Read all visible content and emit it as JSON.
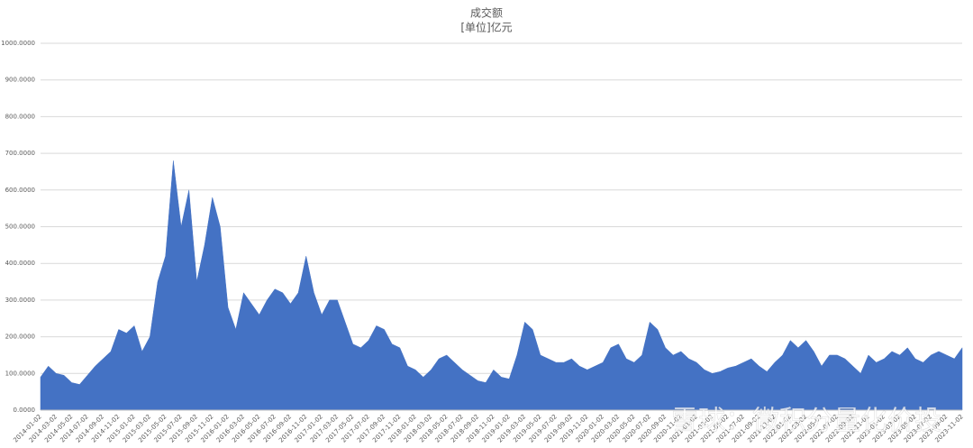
{
  "chart_data": {
    "type": "area",
    "title": "成交额",
    "subtitle": "[单位]亿元",
    "watermark": "雪球：微积分量化价投",
    "color": "#4472c4",
    "grid": true,
    "ylim": [
      0,
      1000
    ],
    "yticks": [
      {
        "value": 0,
        "label": "0.0000"
      },
      {
        "value": 100,
        "label": "100.0000"
      },
      {
        "value": 200,
        "label": "200.0000"
      },
      {
        "value": 300,
        "label": "300.0000"
      },
      {
        "value": 400,
        "label": "400.0000"
      },
      {
        "value": 500,
        "label": "500.0000"
      },
      {
        "value": 600,
        "label": "600.0000"
      },
      {
        "value": 700,
        "label": "700.0000"
      },
      {
        "value": 800,
        "label": "800.0000"
      },
      {
        "value": 900,
        "label": "900.0000"
      },
      {
        "value": 1000,
        "label": "1000.0000"
      }
    ],
    "categories": [
      "2014-01-02",
      null,
      "2014-03-02",
      null,
      "2014-05-02",
      null,
      "2014-07-02",
      null,
      "2014-09-02",
      null,
      "2014-11-02",
      null,
      "2015-01-02",
      null,
      "2015-03-02",
      null,
      "2015-05-02",
      null,
      "2015-07-02",
      null,
      "2015-09-02",
      null,
      "2015-11-02",
      null,
      "2016-01-02",
      null,
      "2016-03-02",
      null,
      "2016-05-02",
      null,
      "2016-07-02",
      null,
      "2016-09-02",
      null,
      "2016-11-02",
      null,
      "2017-01-02",
      null,
      "2017-03-02",
      null,
      "2017-05-02",
      null,
      "2017-07-02",
      null,
      "2017-09-02",
      null,
      "2017-11-02",
      null,
      "2018-01-02",
      null,
      "2018-03-02",
      null,
      "2018-05-02",
      null,
      "2018-07-02",
      null,
      "2018-09-02",
      null,
      "2018-11-02",
      null,
      "2019-01-02",
      null,
      "2019-03-02",
      null,
      "2019-05-02",
      null,
      "2019-07-02",
      null,
      "2019-09-02",
      null,
      "2019-11-02",
      null,
      "2020-01-02",
      null,
      "2020-03-02",
      null,
      "2020-05-02",
      null,
      "2020-07-02",
      null,
      "2020-09-02",
      null,
      "2020-11-02",
      null,
      "2021-01-02",
      null,
      "2021-03-02",
      null,
      "2021-05-02",
      null,
      "2021-07-02",
      null,
      "2021-09-02",
      null,
      "2021-11-02",
      null,
      "2022-01-02",
      null,
      "2022-03-02",
      null,
      "2022-05-02",
      null,
      "2022-07-02",
      null,
      "2022-09-02",
      null,
      "2022-11-02",
      null,
      "2023-01-02",
      null,
      "2023-03-02",
      null,
      "2023-05-02",
      null,
      "2023-07-02",
      null,
      "2023-09-02",
      null,
      "2023-11-02"
    ],
    "values": [
      90,
      120,
      100,
      95,
      75,
      70,
      95,
      120,
      140,
      160,
      220,
      210,
      230,
      160,
      200,
      350,
      420,
      680,
      500,
      600,
      350,
      450,
      580,
      500,
      280,
      220,
      320,
      290,
      260,
      300,
      330,
      320,
      290,
      320,
      420,
      320,
      260,
      300,
      300,
      240,
      180,
      170,
      190,
      230,
      220,
      180,
      170,
      120,
      110,
      90,
      110,
      140,
      150,
      130,
      110,
      95,
      80,
      75,
      110,
      90,
      85,
      150,
      240,
      220,
      150,
      140,
      130,
      130,
      140,
      120,
      110,
      120,
      130,
      170,
      180,
      140,
      130,
      150,
      240,
      220,
      170,
      150,
      160,
      140,
      130,
      110,
      100,
      105,
      115,
      120,
      130,
      140,
      120,
      105,
      130,
      150,
      190,
      170,
      190,
      160,
      120,
      150,
      150,
      140,
      120,
      100,
      150,
      130,
      140,
      160,
      150,
      170,
      140,
      130,
      150,
      160,
      150,
      140,
      170
    ]
  }
}
